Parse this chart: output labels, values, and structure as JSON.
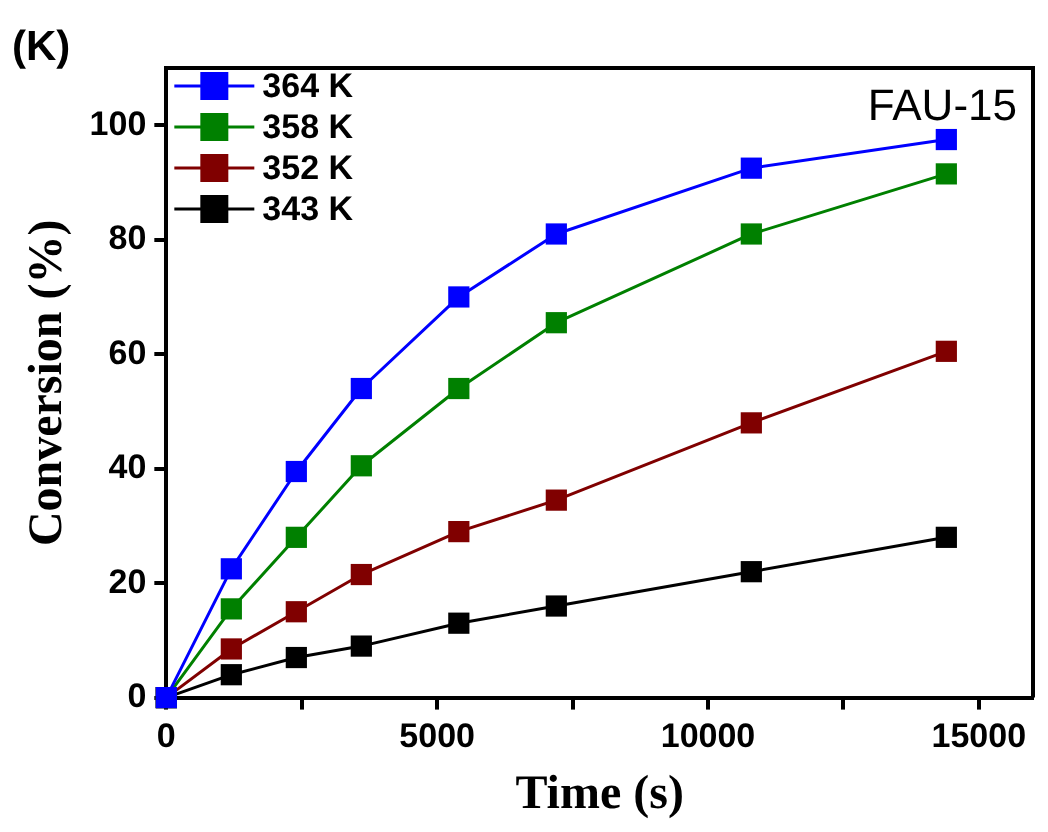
{
  "chart_data": {
    "type": "line",
    "xlabel": "Time (s)",
    "ylabel": "Conversion (%)",
    "annotations": [
      "(K)",
      "FAU-15"
    ],
    "x": [
      0,
      1200,
      2400,
      3600,
      5400,
      7200,
      10800,
      14400
    ],
    "series": [
      {
        "name": "364 K",
        "color": "#0000ff",
        "values": [
          0,
          22.5,
          39.5,
          54,
          70,
          81,
          92.5,
          97.5
        ]
      },
      {
        "name": "358 K",
        "color": "#008000",
        "values": [
          0,
          15.5,
          28,
          40.5,
          54,
          65.5,
          81,
          91.5
        ]
      },
      {
        "name": "352 K",
        "color": "#800000",
        "values": [
          0,
          8.5,
          15,
          21.5,
          29,
          34.5,
          48,
          60.5
        ]
      },
      {
        "name": "343 K",
        "color": "#000000",
        "values": [
          0,
          4,
          7,
          9,
          13,
          16,
          22,
          28
        ]
      }
    ],
    "xlim": [
      0,
      16000
    ],
    "xticks": [
      0,
      {
        "value": 2500,
        "label": null
      },
      5000,
      {
        "value": 7500,
        "label": null
      },
      10000,
      {
        "value": 12500,
        "label": null
      },
      15000
    ],
    "ylim": [
      0,
      110
    ],
    "yticks": [
      0,
      20,
      40,
      60,
      80,
      100
    ],
    "legend": "top left",
    "marker": "square",
    "line_style": "solid",
    "grid": false
  }
}
